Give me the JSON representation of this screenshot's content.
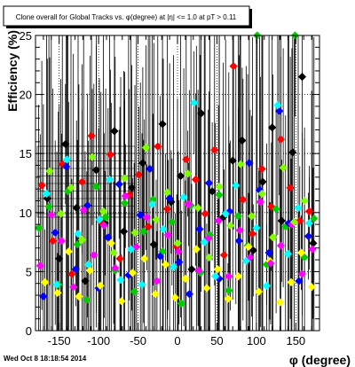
{
  "chart_data": {
    "type": "scatter",
    "title": "Clone  overall for Global Tracks vs. φ(degree) at |η| <= 1.0 at pT > 0.11",
    "xlabel": "φ (degree)",
    "ylabel": "Efficiency (%)",
    "xlim": [
      -180,
      180
    ],
    "ylim": [
      0,
      25
    ],
    "x_ticks": [
      "-150",
      "-100",
      "-50",
      "0",
      "50",
      "100",
      "150"
    ],
    "y_ticks": [
      "0",
      "5",
      "10",
      "15",
      "20",
      "25"
    ],
    "grid": true,
    "legend_position": "left",
    "footer": "Wed Oct  8 18:18:54 2014",
    "series": [
      {
        "color": "#000000",
        "x": [
          -165,
          -150,
          -142,
          -128,
          -117,
          -103,
          -92,
          -80,
          -68,
          -58,
          -44,
          -30,
          -19,
          -8,
          4,
          18,
          30,
          44,
          58,
          70,
          82,
          96,
          108,
          120,
          132,
          146,
          158,
          172
        ],
        "y": [
          11.2,
          6.1,
          15.8,
          10.4,
          4.2,
          13.6,
          9.1,
          16.9,
          8.4,
          12.1,
          14.2,
          7.3,
          17.5,
          10.9,
          13.1,
          5.2,
          18.4,
          11.8,
          9.6,
          14.4,
          16.1,
          6.8,
          12.6,
          17.2,
          9.3,
          15.1,
          21.5,
          7.4
        ]
      },
      {
        "color": "#ff0000",
        "x": [
          -172,
          -158,
          -146,
          -134,
          -121,
          -109,
          -97,
          -85,
          -73,
          -61,
          -49,
          -37,
          -25,
          -13,
          -1,
          11,
          23,
          35,
          47,
          59,
          71,
          83,
          95,
          107,
          119,
          131,
          143,
          155,
          167
        ],
        "y": [
          12.3,
          7.6,
          14.1,
          4.8,
          12.6,
          16.5,
          9.2,
          14.9,
          6.1,
          11.5,
          13.2,
          8.8,
          15.6,
          10.3,
          7.1,
          14.5,
          12.8,
          9.9,
          15.3,
          6.4,
          22.4,
          11.1,
          8.2,
          13.7,
          10.5,
          16.2,
          12.1,
          9.3,
          10.1
        ]
      },
      {
        "color": "#00cc00",
        "x": [
          -176,
          -163,
          -151,
          -139,
          -127,
          -115,
          -103,
          -91,
          -79,
          -67,
          -55,
          -43,
          -31,
          -19,
          -7,
          5,
          17,
          29,
          41,
          53,
          65,
          77,
          89,
          101,
          113,
          125,
          137,
          149,
          161,
          173
        ],
        "y": [
          8.7,
          10.5,
          3.9,
          11.8,
          7.3,
          2.6,
          12.2,
          9.6,
          5.1,
          10.8,
          3.3,
          8.4,
          11.1,
          6.7,
          9.2,
          2.3,
          10.6,
          4.9,
          8.1,
          11.5,
          3.4,
          9.7,
          7.2,
          25.0,
          5.6,
          10.3,
          8.8,
          25.0,
          6.2,
          9.5
        ]
      },
      {
        "color": "#0000ff",
        "x": [
          -170,
          -155,
          -141,
          -129,
          -114,
          -100,
          -88,
          -74,
          -62,
          -47,
          -35,
          -22,
          -10,
          2,
          15,
          28,
          40,
          53,
          66,
          78,
          91,
          104,
          116,
          129,
          141,
          154,
          166
        ],
        "y": [
          2.9,
          8.3,
          13.9,
          5.2,
          10.6,
          3.6,
          7.9,
          12.4,
          4.7,
          9.8,
          13.7,
          6.3,
          11.2,
          5.8,
          3.1,
          8.6,
          12.5,
          4.4,
          10.1,
          7.6,
          14.2,
          11.9,
          6.6,
          18.6,
          9.1,
          4.2,
          8.0
        ]
      },
      {
        "color": "#ffff00",
        "x": [
          -168,
          -152,
          -138,
          -125,
          -111,
          -98,
          -84,
          -71,
          -57,
          -42,
          -28,
          -15,
          -3,
          10,
          24,
          37,
          51,
          64,
          77,
          90,
          103,
          117,
          130,
          144,
          157,
          170
        ],
        "y": [
          4.1,
          3.2,
          6.7,
          2.9,
          5.1,
          3.8,
          7.4,
          2.5,
          4.9,
          6.1,
          3.1,
          5.6,
          2.8,
          4.4,
          6.9,
          3.6,
          5.2,
          2.7,
          4.6,
          7.1,
          3.3,
          5.9,
          2.4,
          4.1,
          6.6,
          3.7
        ]
      },
      {
        "color": "#ff00ff",
        "x": [
          -174,
          -160,
          -147,
          -132,
          -119,
          -106,
          -93,
          -79,
          -66,
          -52,
          -39,
          -26,
          -12,
          1,
          14,
          27,
          39,
          52,
          65,
          79,
          92,
          105,
          118,
          131,
          145,
          158,
          171
        ],
        "y": [
          5.5,
          9.8,
          7.6,
          3.7,
          10.2,
          6.4,
          8.9,
          5.3,
          11.4,
          7.1,
          9.6,
          4.2,
          8.1,
          6.7,
          10.7,
          5.1,
          7.8,
          9.3,
          4.6,
          8.5,
          6.2,
          10.9,
          5.7,
          7.2,
          9.0,
          4.8,
          6.9
        ]
      },
      {
        "color": "#00ffff",
        "x": [
          -166,
          -153,
          -140,
          -126,
          -113,
          -99,
          -86,
          -72,
          -59,
          -45,
          -32,
          -18,
          -5,
          8,
          21,
          34,
          48,
          61,
          74,
          87,
          100,
          113,
          127,
          140,
          153,
          167
        ],
        "y": [
          11.6,
          3.9,
          14.5,
          8.2,
          5.6,
          9.4,
          12.8,
          4.3,
          6.9,
          3.9,
          10.7,
          8.6,
          5.4,
          11.3,
          19.3,
          7.5,
          4.6,
          9.9,
          12.3,
          5.9,
          8.7,
          3.8,
          19.1,
          6.5,
          10.4,
          9.1
        ]
      },
      {
        "color": "#80ff00",
        "x": [
          -162,
          -148,
          -135,
          -121,
          -108,
          -94,
          -81,
          -67,
          -54,
          -40,
          -27,
          -13,
          0,
          13,
          26,
          40,
          53,
          67,
          80,
          94,
          107,
          121,
          134,
          148,
          161
        ],
        "y": [
          13.5,
          9.9,
          12.1,
          7.7,
          14.7,
          10.1,
          6.6,
          12.9,
          8.3,
          15.5,
          9.4,
          11.7,
          7.4,
          13.3,
          10.4,
          6.2,
          12.2,
          8.9,
          14.1,
          9.7,
          11.6,
          7.9,
          13.8,
          9.2,
          11.0
        ]
      }
    ]
  }
}
